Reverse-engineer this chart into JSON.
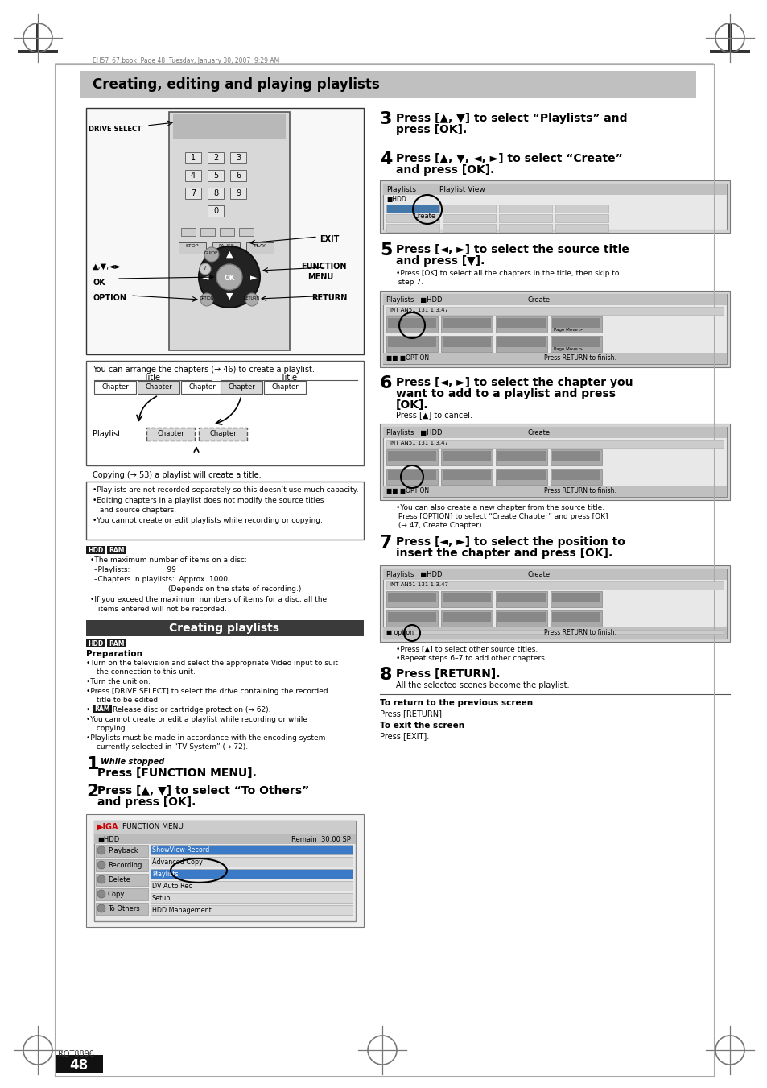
{
  "page_title": "Creating, editing and playing playlists",
  "title_bg": "#c0c0c0",
  "header_text": "EH57_67.book  Page 48  Tuesday, January 30, 2007  9:29 AM",
  "section2_title": "Creating playlists",
  "section2_bg": "#3a3a3a",
  "section2_color": "#ffffff",
  "step3_title_line1": "Press [▲, ▼] to select “Playlists” and",
  "step3_title_line2": "press [OK].",
  "step4_title_line1": "Press [▲, ▼, ◄, ►] to select “Create”",
  "step4_title_line2": "and press [OK].",
  "step5_title_line1": "Press [◄, ►] to select the source title",
  "step5_title_line2": "and press [▼].",
  "step5_bullet": "•Press [OK] to select all the chapters in the title, then skip to\n step 7.",
  "step6_title_line1": "Press [◄, ►] to select the chapter you",
  "step6_title_line2": "want to add to a playlist and press",
  "step6_title_line3": "[OK].",
  "step6_sub": "Press [▲] to cancel.",
  "step6_bullet_line1": "•You can also create a new chapter from the source title.",
  "step6_bullet_line2": " Press [OPTION] to select “Create Chapter” and press [OK]",
  "step6_bullet_line3": " (→ 47, Create Chapter).",
  "step7_title_line1": "Press [◄, ►] to select the position to",
  "step7_title_line2": "insert the chapter and press [OK].",
  "step7_bullet1": "•Press [▲] to select other source titles.",
  "step7_bullet2": "•Repeat steps 6–7 to add other chapters.",
  "step8_title": "Press [RETURN].",
  "step8_sub": "All the selected scenes become the playlist.",
  "return_title": "To return to the previous screen",
  "return_text": "Press [RETURN].",
  "exit_title": "To exit the screen",
  "exit_text": "Press [EXIT].",
  "page_number": "48",
  "model": "RQT8896",
  "info_box_text": "You can arrange the chapters (→ 46) to create a playlist.",
  "copying_text": "Copying (→ 53) a playlist will create a title.",
  "bullet_notes": [
    "•Playlists are not recorded separately so this doesn’t use much capacity.",
    "•Editing chapters in a playlist does not modify the source titles\n and source chapters.",
    "•You cannot create or edit playlists while recording or copying."
  ],
  "hdd_label1": "The maximum number of items on a disc:",
  "hdd_label2": "–Playlists:                99",
  "hdd_label3": "–Chapters in playlists:  Approx. 1000",
  "hdd_label4": "                                (Depends on the state of recording.)",
  "hdd_label5": "•If you exceed the maximum numbers of items for a disc, all the\n items entered will not be recorded.",
  "prep_label": "Preparation",
  "prep1": "•Turn on the television and select the appropriate Video input to suit\n the connection to this unit.",
  "prep2": "•Turn the unit on.",
  "prep3": "•Press [DRIVE SELECT] to select the drive containing the recorded\n title to be edited.",
  "prep4": "•",
  "prep4b": "RAM",
  "prep4c": " Release disc or cartridge protection (→ 62).",
  "prep5": "•You cannot create or edit a playlist while recording or while\n copying.",
  "prep6": "•Playlists must be made in accordance with the encoding system\n currently selected in “TV System” (→ 72).",
  "step1_italic": "While stopped",
  "step1_bold": "Press [FUNCTION MENU].",
  "step2_line1": "Press [▲, ▼] to select “To Others”",
  "step2_line2": "and press [OK]."
}
